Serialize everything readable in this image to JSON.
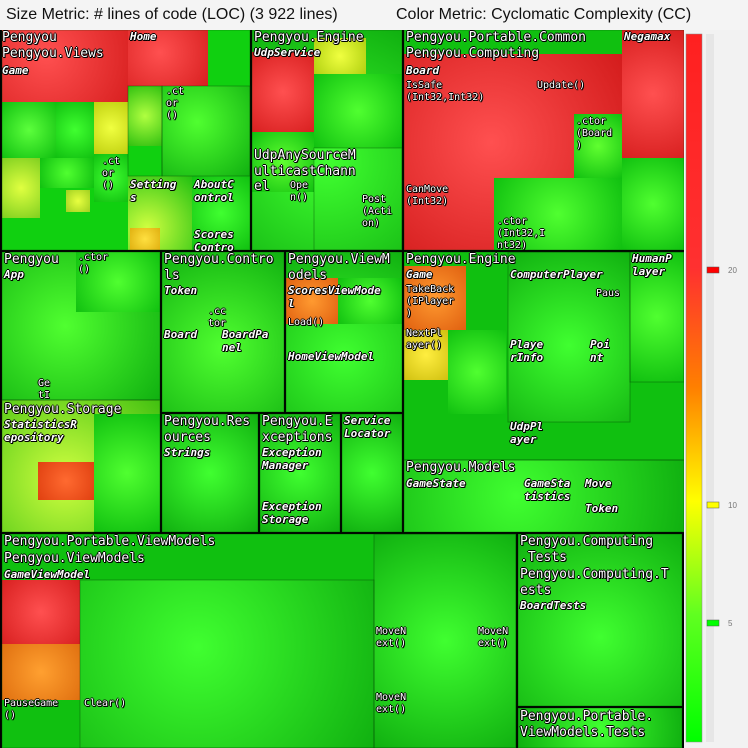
{
  "header": {
    "size_metric": "Size Metric: # lines of code (LOC) (3 922 lines)",
    "color_metric": "Color Metric: Cyclomatic Complexity (CC)"
  },
  "colors": {
    "low": "#00e000",
    "mid": "#e8e800",
    "high": "#e03030",
    "border": "#003300"
  },
  "chart_data": {
    "type": "treemap",
    "size_metric": "# lines of code (LOC)",
    "total_lines": 3922,
    "color_metric": "Cyclomatic Complexity (CC)",
    "color_scale": {
      "ticks": [
        5,
        10,
        20
      ],
      "colors": {
        "5": "#00ff00",
        "10": "#ffff00",
        "20": "#ff0000"
      }
    },
    "namespaces": [
      {
        "name": "Pengyou.Views",
        "types": [
          "Game",
          "Home",
          "Settings",
          "AboutControl",
          "ScoresControl"
        ],
        "methods": [
          ".ctor()"
        ]
      },
      {
        "name": "Pengyou.Engine",
        "types": [
          "UdpService",
          "UdpAnySourceMulticastChannel"
        ],
        "methods": [
          "Open()",
          "Post(Action)"
        ]
      },
      {
        "name": "Pengyou.Portable.Common",
        "types": [
          "Negamax"
        ]
      },
      {
        "name": "Pengyou.Computing",
        "types": [
          "Board"
        ],
        "methods": [
          "IsSafe(Int32,Int32)",
          "Update()",
          ".ctor(Board)",
          "CanMove(Int32)",
          ".ctor(Int32,Int32)"
        ]
      },
      {
        "name": "Pengyou",
        "types": [
          "App"
        ],
        "methods": [
          ".ctor()",
          "GetI"
        ]
      },
      {
        "name": "Pengyou.Controls",
        "types": [
          "Token",
          "Board",
          "BoardPanel"
        ],
        "methods": [
          ".ctor"
        ]
      },
      {
        "name": "Pengyou.ViewModels",
        "types": [
          "ScoresViewModel",
          "HomeViewModel"
        ],
        "methods": [
          "Load()"
        ]
      },
      {
        "name": "Pengyou.Engine",
        "types": [
          "Game",
          "ComputerPlayer",
          "HumanPlayer",
          "PlayerInfo",
          "Point",
          "UdpPlayer"
        ],
        "methods": [
          "TakeBack(IPlayer)",
          "NextPlayer()",
          "Paus"
        ]
      },
      {
        "name": "Pengyou.Storage",
        "types": [
          "StatisticsRepository"
        ]
      },
      {
        "name": "Pengyou.Resources",
        "types": [
          "Strings"
        ]
      },
      {
        "name": "Pengyou.Exceptions",
        "types": [
          "ExceptionManager",
          "ExceptionStorage"
        ]
      },
      {
        "name": "ServiceLocator",
        "types": []
      },
      {
        "name": "Pengyou.Models",
        "types": [
          "GameState",
          "GameStatistics",
          "Move",
          "Token"
        ]
      },
      {
        "name": "Pengyou.Portable.ViewModels",
        "types": [
          "GameViewModel"
        ],
        "methods": [
          "PauseGame()",
          "Clear()",
          "MoveNext()"
        ]
      },
      {
        "name": "Pengyou.Computing.Tests",
        "types": [
          "BoardTests"
        ]
      },
      {
        "name": "Pengyou.Portable.ViewModels.Tests",
        "types": []
      }
    ]
  },
  "treemap": {
    "blocks": [
      {
        "name": "views-small-a",
        "x": 2,
        "y": 70,
        "w": 130,
        "h": 180,
        "cc": 3,
        "cells": [
          3,
          3
        ]
      },
      {
        "name": "views-home",
        "x": 128,
        "y": 0,
        "w": 80,
        "h": 70,
        "cc": 22
      },
      {
        "name": "views-game",
        "x": 2,
        "y": 0,
        "w": 126,
        "h": 70,
        "cc": 22
      },
      {
        "name": "engine-udp",
        "x": 252,
        "y": 0,
        "w": 152,
        "h": 222,
        "cc": 3,
        "cells": [
          2,
          2
        ]
      },
      {
        "name": "engine-udp-hot",
        "x": 252,
        "y": 26,
        "w": 62,
        "h": 74,
        "cc": 20
      },
      {
        "name": "common-board",
        "x": 404,
        "y": 0,
        "w": 280,
        "h": 222,
        "cc": 20
      },
      {
        "name": "common-negamax",
        "x": 622,
        "y": 0,
        "w": 62,
        "h": 130,
        "cc": 20
      }
    ]
  },
  "labels": {
    "pengyou_views_1": "Pengyou",
    "pengyou_views_2": "Pengyou.Views",
    "views_game": "Game",
    "views_home": "Home",
    "views_ctor": ".ct\nor\n()",
    "views_ctor2": ".ct\nor\n()",
    "views_settings": "Setting\ns",
    "views_about": "AboutC\nontrol",
    "views_scores": "Scores\nContro",
    "engine_title": "Pengyou.Engine",
    "engine_udp": "UdpService",
    "engine_multicast": "UdpAnySourceM\nulticastChann\nel",
    "engine_open": "Ope\nn()",
    "engine_post": "Post\n(Acti\non)",
    "common_title": "Pengyou.Portable.Common",
    "computing_title": "Pengyou.Computing",
    "negamax": "Negamax",
    "board": "Board",
    "issafe": "IsSafe\n(Int32,Int32)",
    "update": "Update()",
    "ctor_board": ".ctor\n(Board\n)",
    "canmove": "CanMove\n(Int32)",
    "ctor_int": ".ctor\n(Int32,I\nnt32)",
    "pengyou_app_title": "Pengyou",
    "app": "App",
    "app_ctor": ".ctor\n()",
    "app_get": "Ge\ntI",
    "controls_title": "Pengyou.Contro\nls",
    "controls_token": "Token",
    "controls_cctor": ".cc\ntor",
    "controls_board": "Board",
    "controls_boardpanel": "BoardPa\nnel",
    "viewmodels_title": "Pengyou.ViewM\nodels",
    "scores_vm": "ScoresViewMode\nl",
    "load": "Load()",
    "home_vm": "HomeViewModel",
    "engine2_title": "Pengyou.Engine",
    "engine2_game": "Game",
    "takeback": "TakeBack\n(IPlayer\n)",
    "nextplayer": "NextPl\nayer()",
    "computer_player": "ComputerPlayer",
    "human_player": "HumanP\nlayer",
    "paus": "Paus",
    "player_info": "Playe\nrInfo",
    "point": "Poi\nnt",
    "udp_player": "UdpPl\nayer",
    "storage_title": "Pengyou.Storage",
    "stats_repo": "StatisticsR\nepository",
    "resources_title": "Pengyou.Res\nources",
    "strings": "Strings",
    "exceptions_title": "Pengyou.E\nxceptions",
    "exception_manager": "Exception\nManager",
    "exception_storage": "Exception\nStorage",
    "service_locator": "Service\nLocator",
    "models_title": "Pengyou.Models",
    "game_state": "GameState",
    "game_statistics": "GameSta\ntistics",
    "move": "Move",
    "token": "Token",
    "pvm_title": "Pengyou.Portable.ViewModels",
    "pvm_sub": "Pengyou.ViewModels",
    "game_vm": "GameViewModel",
    "pause_game": "PauseGame\n()",
    "clear": "Clear()",
    "movenext1": "MoveN\next()",
    "movenext2": "MoveN\next()",
    "movenext3": "MoveN\next()",
    "tests_title": "Pengyou.Computing\n.Tests",
    "tests_sub": "Pengyou.Computing.T\nests",
    "board_tests": "BoardTests",
    "pvm_tests": "Pengyou.Portable.\nViewModels.Tests"
  }
}
